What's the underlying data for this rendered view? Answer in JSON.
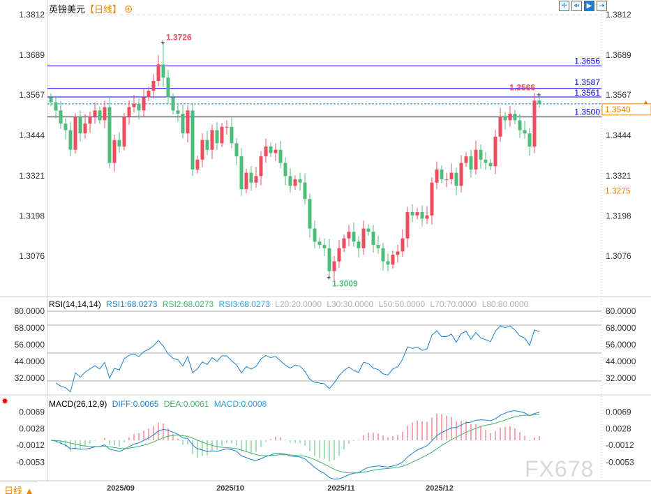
{
  "header": {
    "symbol": "英镑美元",
    "period": "【日线】",
    "add_icon": "circle-plus-icon"
  },
  "toolbar": {
    "icons": [
      "crosshair-icon",
      "fit-range-icon",
      "play-forward-icon",
      "exit-icon"
    ]
  },
  "bottom": {
    "period_label": "日线 ▲",
    "watermark": "FX678"
  },
  "colors": {
    "up": "#ee4d5f",
    "down": "#4fbd7a",
    "level": "#0000ee",
    "current": "#f08300",
    "rsi": "#1a7fd0",
    "diff": "#1a7fd0",
    "dea": "#3cb371",
    "grid": "#c8c8c8"
  },
  "chart_data": [
    {
      "type": "candlestick",
      "y_ticks": [
        "1.3812",
        "1.3689",
        "1.3567",
        "1.3444",
        "1.3321",
        "1.3198",
        "1.3076"
      ],
      "x_ticks": [
        "2025/09",
        "2025/10",
        "2025/11",
        "2025/12"
      ],
      "closes": [
        1.3545,
        1.352,
        1.348,
        1.346,
        1.34,
        1.35,
        1.345,
        1.348,
        1.35,
        1.352,
        1.349,
        1.353,
        1.336,
        1.343,
        1.341,
        1.35,
        1.353,
        1.354,
        1.352,
        1.356,
        1.358,
        1.361,
        1.366,
        1.362,
        1.356,
        1.352,
        1.351,
        1.345,
        1.352,
        1.334,
        1.337,
        1.343,
        1.34,
        1.346,
        1.342,
        1.347,
        1.347,
        1.342,
        1.338,
        1.328,
        1.333,
        1.33,
        1.332,
        1.338,
        1.341,
        1.339,
        1.34,
        1.336,
        1.332,
        1.329,
        1.331,
        1.33,
        1.325,
        1.316,
        1.312,
        1.311,
        1.31,
        1.303,
        1.306,
        1.31,
        1.313,
        1.315,
        1.312,
        1.31,
        1.316,
        1.315,
        1.311,
        1.31,
        1.306,
        1.305,
        1.308,
        1.309,
        1.313,
        1.321,
        1.32,
        1.321,
        1.319,
        1.32,
        1.33,
        1.334,
        1.331,
        1.331,
        1.333,
        1.329,
        1.336,
        1.338,
        1.334,
        1.34,
        1.337,
        1.336,
        1.335,
        1.344,
        1.35,
        1.349,
        1.351,
        1.349,
        1.346,
        1.345,
        1.341,
        1.355,
        1.354
      ],
      "annotations": {
        "high": {
          "value": "1.3726",
          "index": 23
        },
        "low": {
          "value": "1.3009",
          "index": 57
        },
        "last_high": {
          "value": "1.3566",
          "index": 100
        }
      },
      "levels": [
        "1.3656",
        "1.3587",
        "1.3561",
        "1.3500"
      ],
      "current_price": "1.3540",
      "marker_price": "1.3275"
    },
    {
      "type": "line",
      "title": "RSI(14,14,14)",
      "legend": [
        {
          "text": "RSI1:68.0273",
          "color": "#1a7fd0"
        },
        {
          "text": "RSI2:68.0273",
          "color": "#3cb371"
        },
        {
          "text": "RSI3:68.0273",
          "color": "#22a0e0"
        },
        {
          "text": "L20:20.0000",
          "color": "#b0b0b0"
        },
        {
          "text": "L30:30.0000",
          "color": "#b0b0b0"
        },
        {
          "text": "L50:50.0000",
          "color": "#b0b0b0"
        },
        {
          "text": "L70:70.0000",
          "color": "#b0b0b0"
        },
        {
          "text": "L80:80.0000",
          "color": "#b0b0b0"
        }
      ],
      "y_ticks": [
        "80.0000",
        "68.0000",
        "56.0000",
        "44.0000",
        "32.0000"
      ],
      "reference_lines": [
        80,
        70,
        50,
        30
      ]
    },
    {
      "type": "bar+line",
      "title": "MACD(26,12,9)",
      "legend": [
        {
          "text": "DIFF:0.0065",
          "color": "#1a7fd0"
        },
        {
          "text": "DEA:0.0061",
          "color": "#3cb371"
        },
        {
          "text": "MACD:0.0008",
          "color": "#22a0e0"
        }
      ],
      "y_ticks": [
        "0.0069",
        "0.0028",
        "-0.0012",
        "-0.0053"
      ]
    }
  ]
}
